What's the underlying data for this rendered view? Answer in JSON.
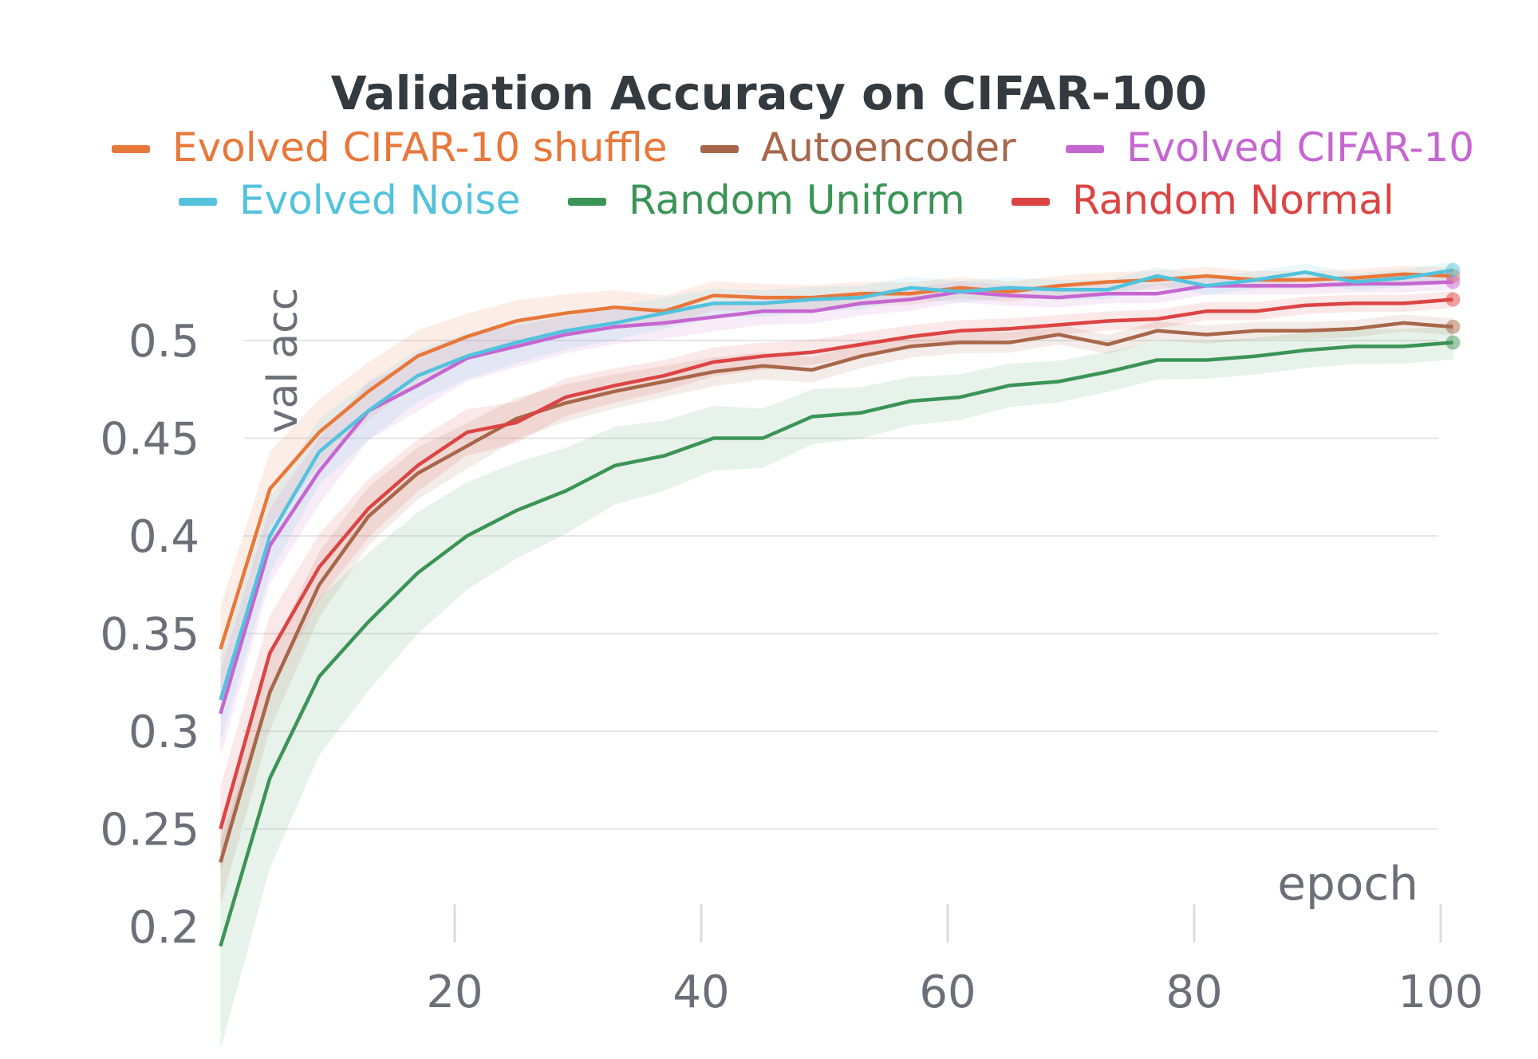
{
  "chart_data": {
    "type": "line",
    "title": "Validation Accuracy on CIFAR-100",
    "xlabel": "epoch",
    "ylabel": "val acc",
    "xlim": [
      1,
      104
    ],
    "ylim": [
      0.19,
      0.54
    ],
    "x_ticks": [
      20,
      40,
      60,
      80,
      100
    ],
    "y_ticks": [
      0.2,
      0.25,
      0.3,
      0.35,
      0.4,
      0.45,
      0.5
    ],
    "y_tick_labels": [
      "0.2",
      "0.25",
      "0.3",
      "0.35",
      "0.4",
      "0.45",
      "0.5"
    ],
    "grid": true,
    "legend_position": "top",
    "x": [
      1,
      5,
      9,
      13,
      17,
      21,
      25,
      29,
      33,
      37,
      41,
      45,
      49,
      53,
      57,
      61,
      65,
      69,
      73,
      77,
      81,
      85,
      89,
      93,
      97,
      101
    ],
    "series": [
      {
        "name": "Evolved CIFAR-10 shuffle",
        "color": "#e8773a",
        "values": [
          0.342,
          0.424,
          0.453,
          0.474,
          0.492,
          0.502,
          0.51,
          0.514,
          0.517,
          0.515,
          0.523,
          0.522,
          0.522,
          0.524,
          0.524,
          0.527,
          0.525,
          0.528,
          0.53,
          0.531,
          0.533,
          0.531,
          0.531,
          0.532,
          0.534,
          0.533
        ]
      },
      {
        "name": "Autoencoder",
        "color": "#a8664a",
        "values": [
          0.233,
          0.32,
          0.375,
          0.41,
          0.432,
          0.446,
          0.46,
          0.468,
          0.474,
          0.479,
          0.484,
          0.487,
          0.485,
          0.492,
          0.497,
          0.499,
          0.499,
          0.503,
          0.498,
          0.505,
          0.503,
          0.505,
          0.505,
          0.506,
          0.509,
          0.507
        ]
      },
      {
        "name": "Evolved CIFAR-10",
        "color": "#c566d1",
        "values": [
          0.309,
          0.395,
          0.433,
          0.464,
          0.477,
          0.491,
          0.497,
          0.503,
          0.507,
          0.509,
          0.512,
          0.515,
          0.515,
          0.519,
          0.521,
          0.525,
          0.523,
          0.522,
          0.524,
          0.524,
          0.528,
          0.528,
          0.528,
          0.529,
          0.529,
          0.53
        ]
      },
      {
        "name": "Evolved Noise",
        "color": "#52c2dd",
        "values": [
          0.316,
          0.4,
          0.443,
          0.464,
          0.482,
          0.492,
          0.499,
          0.505,
          0.509,
          0.514,
          0.519,
          0.519,
          0.521,
          0.522,
          0.527,
          0.525,
          0.527,
          0.526,
          0.526,
          0.533,
          0.528,
          0.531,
          0.535,
          0.53,
          0.532,
          0.536
        ]
      },
      {
        "name": "Random Uniform",
        "color": "#3b9456",
        "values": [
          0.19,
          0.276,
          0.328,
          0.356,
          0.381,
          0.4,
          0.413,
          0.423,
          0.436,
          0.441,
          0.45,
          0.45,
          0.461,
          0.463,
          0.469,
          0.471,
          0.477,
          0.479,
          0.484,
          0.49,
          0.49,
          0.492,
          0.495,
          0.497,
          0.497,
          0.499
        ]
      },
      {
        "name": "Random Normal",
        "color": "#dc4444",
        "values": [
          0.25,
          0.34,
          0.384,
          0.414,
          0.436,
          0.453,
          0.458,
          0.471,
          0.477,
          0.482,
          0.489,
          0.492,
          0.494,
          0.498,
          0.502,
          0.505,
          0.506,
          0.508,
          0.51,
          0.511,
          0.515,
          0.515,
          0.518,
          0.519,
          0.519,
          0.521
        ]
      }
    ]
  }
}
